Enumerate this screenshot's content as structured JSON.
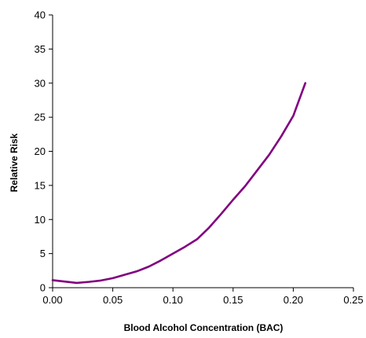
{
  "chart_data": {
    "type": "line",
    "title": "",
    "xlabel": "Blood Alcohol Concentration (BAC)",
    "ylabel": "Relative Risk",
    "xlim": [
      0,
      0.25
    ],
    "ylim": [
      0,
      40
    ],
    "x_ticks": [
      "0.00",
      "0.05",
      "0.10",
      "0.15",
      "0.20",
      "0.25"
    ],
    "x_tick_values": [
      0,
      0.05,
      0.1,
      0.15,
      0.2,
      0.25
    ],
    "y_ticks": [
      "0",
      "5",
      "10",
      "15",
      "20",
      "25",
      "30",
      "35",
      "40"
    ],
    "y_tick_values": [
      0,
      5,
      10,
      15,
      20,
      25,
      30,
      35,
      40
    ],
    "grid": false,
    "legend": "none",
    "series": [
      {
        "color": "#800080",
        "x": [
          0.0,
          0.01,
          0.02,
          0.03,
          0.04,
          0.05,
          0.06,
          0.07,
          0.08,
          0.09,
          0.1,
          0.11,
          0.12,
          0.13,
          0.14,
          0.15,
          0.16,
          0.17,
          0.18,
          0.19,
          0.2,
          0.21
        ],
        "y": [
          1.1,
          0.9,
          0.7,
          0.85,
          1.05,
          1.4,
          1.9,
          2.4,
          3.1,
          4.0,
          5.0,
          6.0,
          7.1,
          8.8,
          10.8,
          12.9,
          14.9,
          17.2,
          19.5,
          22.2,
          25.2,
          30.0
        ]
      }
    ]
  }
}
